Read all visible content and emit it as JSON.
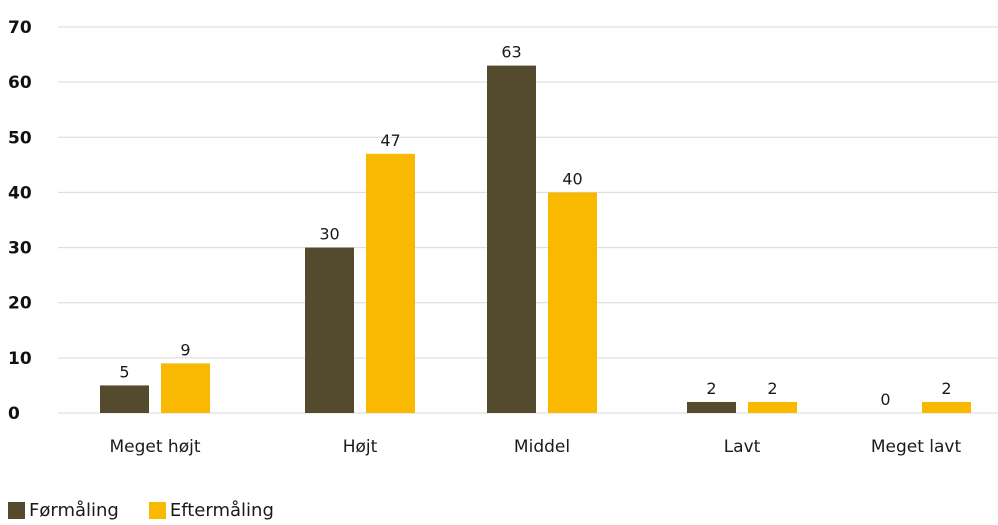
{
  "chart_data": {
    "type": "bar",
    "categories": [
      "Meget højt",
      "Højt",
      "Middel",
      "Lavt",
      "Meget lavt"
    ],
    "series": [
      {
        "name": "Førmåling",
        "values": [
          5,
          30,
          63,
          2,
          0
        ],
        "color": "#544b2e"
      },
      {
        "name": "Eftermåling",
        "values": [
          9,
          47,
          40,
          2,
          2
        ],
        "color": "#f9b900"
      }
    ],
    "data_labels": [
      [
        "5",
        "30",
        "63",
        "2",
        "0"
      ],
      [
        "9",
        "47",
        "40",
        "2",
        "2"
      ]
    ],
    "yticks": [
      "0",
      "10",
      "20",
      "30",
      "40",
      "50",
      "60",
      "70"
    ],
    "ylim": [
      0,
      70
    ],
    "grid": true,
    "legend_position": "bottom-left",
    "title": "",
    "xlabel": "",
    "ylabel": ""
  },
  "colors": {
    "grid": "#d9d9d9",
    "text": "#1a1a1a"
  }
}
